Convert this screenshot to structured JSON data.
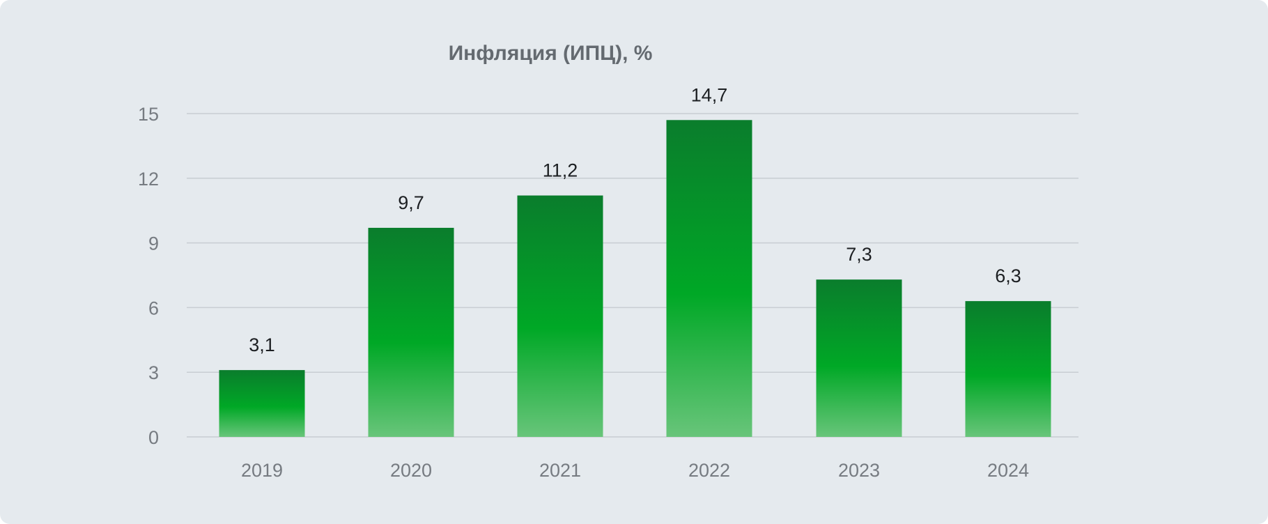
{
  "chart_data": {
    "type": "bar",
    "title": "Инфляция (ИПЦ), %",
    "xlabel": "",
    "ylabel": "",
    "categories": [
      "2019",
      "2020",
      "2021",
      "2022",
      "2023",
      "2024"
    ],
    "values": [
      3.1,
      9.7,
      11.2,
      14.7,
      7.3,
      6.3
    ],
    "value_labels": [
      "3,1",
      "9,7",
      "11,2",
      "14,7",
      "7,3",
      "6,3"
    ],
    "ylim": [
      0,
      15
    ],
    "yticks": [
      0,
      3,
      6,
      9,
      12,
      15
    ],
    "ytick_labels": [
      "0",
      "3",
      "6",
      "9",
      "12",
      "15"
    ],
    "grid": true,
    "legend": "none",
    "colors": {
      "bar_top": "#0a7d2c",
      "bar_mid": "#00a826",
      "bar_bottom": "#68c57a",
      "background": "#e5eaee",
      "gridline": "#c8cdd2"
    }
  }
}
